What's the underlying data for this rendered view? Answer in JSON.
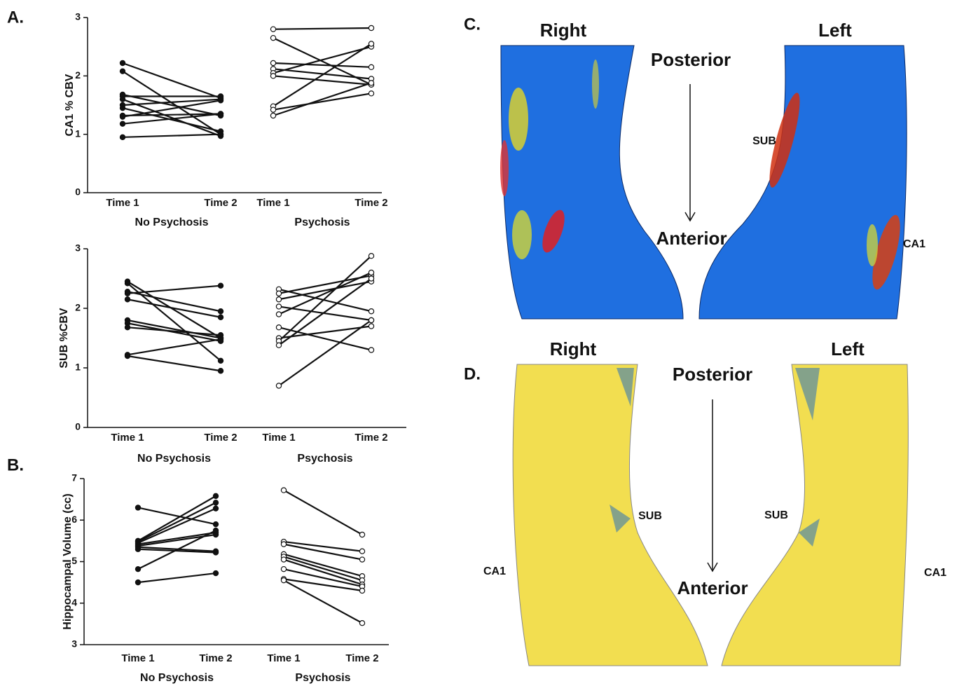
{
  "chart_data": [
    {
      "type": "slope",
      "ylabel": "CA1 % CBV",
      "categories": [
        "Time 1",
        "Time 2",
        "Time 1",
        "Time 2"
      ],
      "groups": [
        "No Psychosis",
        "Psychosis"
      ],
      "ylim": [
        0,
        3
      ],
      "yticks": [
        0,
        1,
        2,
        3
      ],
      "series": [
        {
          "color": "#111111",
          "marker_fill": "#111111",
          "values": [
            2.22,
            1.62,
            null,
            null
          ]
        },
        {
          "color": "#111111",
          "marker_fill": "#111111",
          "values": [
            2.08,
            1.0,
            null,
            null
          ]
        },
        {
          "color": "#111111",
          "marker_fill": "#111111",
          "values": [
            1.68,
            1.32,
            null,
            null
          ]
        },
        {
          "color": "#111111",
          "marker_fill": "#111111",
          "values": [
            1.65,
            1.65,
            null,
            null
          ]
        },
        {
          "color": "#111111",
          "marker_fill": "#111111",
          "values": [
            1.6,
            0.97,
            null,
            null
          ]
        },
        {
          "color": "#111111",
          "marker_fill": "#111111",
          "values": [
            1.5,
            1.6,
            null,
            null
          ]
        },
        {
          "color": "#111111",
          "marker_fill": "#111111",
          "values": [
            1.45,
            1.05,
            null,
            null
          ]
        },
        {
          "color": "#111111",
          "marker_fill": "#111111",
          "values": [
            1.32,
            1.35,
            null,
            null
          ]
        },
        {
          "color": "#111111",
          "marker_fill": "#111111",
          "values": [
            1.3,
            1.58,
            null,
            null
          ]
        },
        {
          "color": "#111111",
          "marker_fill": "#111111",
          "values": [
            1.18,
            1.35,
            null,
            null
          ]
        },
        {
          "color": "#111111",
          "marker_fill": "#111111",
          "values": [
            0.95,
            1.0,
            null,
            null
          ]
        },
        {
          "color": "#111111",
          "marker_fill": "#ffffff",
          "values": [
            null,
            null,
            2.8,
            2.82
          ]
        },
        {
          "color": "#111111",
          "marker_fill": "#ffffff",
          "values": [
            null,
            null,
            2.65,
            1.85
          ]
        },
        {
          "color": "#111111",
          "marker_fill": "#ffffff",
          "values": [
            null,
            null,
            2.22,
            2.15
          ]
        },
        {
          "color": "#111111",
          "marker_fill": "#ffffff",
          "values": [
            null,
            null,
            2.12,
            1.95
          ]
        },
        {
          "color": "#111111",
          "marker_fill": "#ffffff",
          "values": [
            null,
            null,
            2.05,
            2.5
          ]
        },
        {
          "color": "#111111",
          "marker_fill": "#ffffff",
          "values": [
            null,
            null,
            2.0,
            1.85
          ]
        },
        {
          "color": "#111111",
          "marker_fill": "#ffffff",
          "values": [
            null,
            null,
            1.48,
            2.55
          ]
        },
        {
          "color": "#111111",
          "marker_fill": "#ffffff",
          "values": [
            null,
            null,
            1.42,
            1.7
          ]
        },
        {
          "color": "#111111",
          "marker_fill": "#ffffff",
          "values": [
            null,
            null,
            1.32,
            1.88
          ]
        }
      ]
    },
    {
      "type": "slope",
      "ylabel": "SUB %CBV",
      "categories": [
        "Time 1",
        "Time 2",
        "Time 1",
        "Time 2"
      ],
      "groups": [
        "No Psychosis",
        "Psychosis"
      ],
      "ylim": [
        0,
        3
      ],
      "yticks": [
        0,
        1,
        2,
        3
      ],
      "series": [
        {
          "color": "#111111",
          "marker_fill": "#111111",
          "values": [
            2.45,
            1.5,
            null,
            null
          ]
        },
        {
          "color": "#111111",
          "marker_fill": "#111111",
          "values": [
            2.42,
            1.12,
            null,
            null
          ]
        },
        {
          "color": "#111111",
          "marker_fill": "#111111",
          "values": [
            2.28,
            1.95,
            null,
            null
          ]
        },
        {
          "color": "#111111",
          "marker_fill": "#111111",
          "values": [
            2.25,
            2.38,
            null,
            null
          ]
        },
        {
          "color": "#111111",
          "marker_fill": "#111111",
          "values": [
            2.15,
            1.85,
            null,
            null
          ]
        },
        {
          "color": "#111111",
          "marker_fill": "#111111",
          "values": [
            1.8,
            1.5,
            null,
            null
          ]
        },
        {
          "color": "#111111",
          "marker_fill": "#111111",
          "values": [
            1.75,
            1.45,
            null,
            null
          ]
        },
        {
          "color": "#111111",
          "marker_fill": "#111111",
          "values": [
            1.68,
            1.55,
            null,
            null
          ]
        },
        {
          "color": "#111111",
          "marker_fill": "#111111",
          "values": [
            1.22,
            1.48,
            null,
            null
          ]
        },
        {
          "color": "#111111",
          "marker_fill": "#111111",
          "values": [
            1.2,
            0.95,
            null,
            null
          ]
        },
        {
          "color": "#111111",
          "marker_fill": "#ffffff",
          "values": [
            null,
            null,
            2.32,
            1.95
          ]
        },
        {
          "color": "#111111",
          "marker_fill": "#ffffff",
          "values": [
            null,
            null,
            2.25,
            2.55
          ]
        },
        {
          "color": "#111111",
          "marker_fill": "#ffffff",
          "values": [
            null,
            null,
            2.15,
            2.45
          ]
        },
        {
          "color": "#111111",
          "marker_fill": "#ffffff",
          "values": [
            null,
            null,
            2.03,
            1.8
          ]
        },
        {
          "color": "#111111",
          "marker_fill": "#ffffff",
          "values": [
            null,
            null,
            1.9,
            2.6
          ]
        },
        {
          "color": "#111111",
          "marker_fill": "#ffffff",
          "values": [
            null,
            null,
            1.68,
            1.3
          ]
        },
        {
          "color": "#111111",
          "marker_fill": "#ffffff",
          "values": [
            null,
            null,
            1.5,
            1.7
          ]
        },
        {
          "color": "#111111",
          "marker_fill": "#ffffff",
          "values": [
            null,
            null,
            1.45,
            2.88
          ]
        },
        {
          "color": "#111111",
          "marker_fill": "#ffffff",
          "values": [
            null,
            null,
            1.38,
            2.5
          ]
        },
        {
          "color": "#111111",
          "marker_fill": "#ffffff",
          "values": [
            null,
            null,
            0.7,
            1.8
          ]
        }
      ]
    },
    {
      "type": "slope",
      "ylabel": "Hippocampal Volume (cc)",
      "categories": [
        "Time 1",
        "Time 2",
        "Time 1",
        "Time 2"
      ],
      "groups": [
        "No Psychosis",
        "Psychosis"
      ],
      "ylim": [
        3,
        7
      ],
      "yticks": [
        3,
        4,
        5,
        6,
        7
      ],
      "series": [
        {
          "color": "#111111",
          "marker_fill": "#111111",
          "values": [
            6.3,
            5.9,
            null,
            null
          ]
        },
        {
          "color": "#111111",
          "marker_fill": "#111111",
          "values": [
            5.5,
            6.58,
            null,
            null
          ]
        },
        {
          "color": "#111111",
          "marker_fill": "#111111",
          "values": [
            5.48,
            6.42,
            null,
            null
          ]
        },
        {
          "color": "#111111",
          "marker_fill": "#111111",
          "values": [
            5.45,
            6.28,
            null,
            null
          ]
        },
        {
          "color": "#111111",
          "marker_fill": "#111111",
          "values": [
            5.42,
            5.7,
            null,
            null
          ]
        },
        {
          "color": "#111111",
          "marker_fill": "#111111",
          "values": [
            5.38,
            5.65,
            null,
            null
          ]
        },
        {
          "color": "#111111",
          "marker_fill": "#111111",
          "values": [
            5.35,
            5.25,
            null,
            null
          ]
        },
        {
          "color": "#111111",
          "marker_fill": "#111111",
          "values": [
            5.3,
            5.22,
            null,
            null
          ]
        },
        {
          "color": "#111111",
          "marker_fill": "#111111",
          "values": [
            4.82,
            5.75,
            null,
            null
          ]
        },
        {
          "color": "#111111",
          "marker_fill": "#111111",
          "values": [
            4.5,
            4.72,
            null,
            null
          ]
        },
        {
          "color": "#111111",
          "marker_fill": "#ffffff",
          "values": [
            null,
            null,
            6.72,
            5.65
          ]
        },
        {
          "color": "#111111",
          "marker_fill": "#ffffff",
          "values": [
            null,
            null,
            5.48,
            5.25
          ]
        },
        {
          "color": "#111111",
          "marker_fill": "#ffffff",
          "values": [
            null,
            null,
            5.42,
            5.05
          ]
        },
        {
          "color": "#111111",
          "marker_fill": "#ffffff",
          "values": [
            null,
            null,
            5.18,
            4.65
          ]
        },
        {
          "color": "#111111",
          "marker_fill": "#ffffff",
          "values": [
            null,
            null,
            5.12,
            4.55
          ]
        },
        {
          "color": "#111111",
          "marker_fill": "#ffffff",
          "values": [
            null,
            null,
            5.05,
            4.45
          ]
        },
        {
          "color": "#111111",
          "marker_fill": "#ffffff",
          "values": [
            null,
            null,
            4.82,
            4.4
          ]
        },
        {
          "color": "#111111",
          "marker_fill": "#ffffff",
          "values": [
            null,
            null,
            4.58,
            4.3
          ]
        },
        {
          "color": "#111111",
          "marker_fill": "#ffffff",
          "values": [
            null,
            null,
            4.55,
            3.52
          ]
        }
      ]
    }
  ],
  "figure": {
    "panel_a": "A.",
    "panel_b": "B.",
    "panel_c": "C.",
    "panel_d": "D.",
    "brain_c": {
      "right": "Right",
      "left": "Left",
      "posterior": "Posterior",
      "anterior": "Anterior",
      "sub": "SUB",
      "ca1": "CA1"
    },
    "brain_d": {
      "right": "Right",
      "left": "Left",
      "posterior": "Posterior",
      "anterior": "Anterior",
      "sub_right": "SUB",
      "sub_left": "SUB",
      "ca1_right": "CA1",
      "ca1_left": "CA1"
    }
  }
}
